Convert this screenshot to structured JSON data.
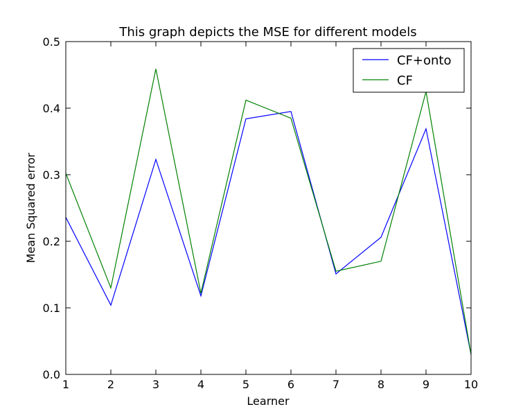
{
  "chart_data": {
    "type": "line",
    "title": "This graph depicts the MSE for different models",
    "xlabel": "Learner",
    "ylabel": "Mean Squared error",
    "x": [
      1,
      2,
      3,
      4,
      5,
      6,
      7,
      8,
      9,
      10
    ],
    "xlim": [
      1,
      10
    ],
    "ylim": [
      0,
      0.5
    ],
    "xticks": [
      1,
      2,
      3,
      4,
      5,
      6,
      7,
      8,
      9,
      10
    ],
    "yticks": [
      0.0,
      0.1,
      0.2,
      0.3,
      0.4,
      0.5
    ],
    "ytick_labels": [
      "0.0",
      "0.1",
      "0.2",
      "0.3",
      "0.4",
      "0.5"
    ],
    "grid": false,
    "legend_position": "top-right",
    "series": [
      {
        "name": "CF+onto",
        "color": "#0000ff",
        "values": [
          0.236,
          0.104,
          0.323,
          0.118,
          0.384,
          0.395,
          0.151,
          0.206,
          0.369,
          0.03
        ]
      },
      {
        "name": "CF",
        "color": "#008000",
        "values": [
          0.302,
          0.13,
          0.459,
          0.122,
          0.412,
          0.385,
          0.155,
          0.17,
          0.425,
          0.03
        ]
      }
    ]
  }
}
